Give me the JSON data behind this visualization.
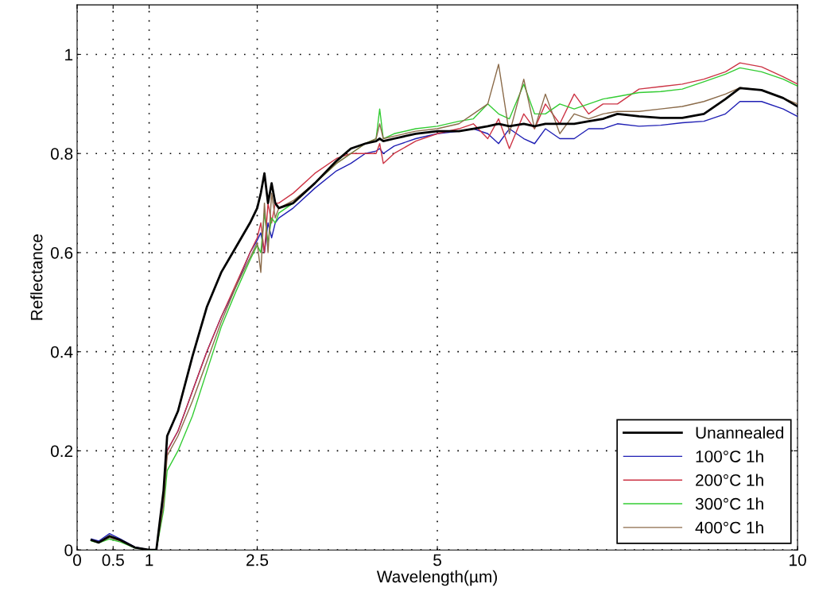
{
  "chart_data": {
    "type": "line",
    "xlabel": "Wavelength(µm)",
    "ylabel": "Reflectance",
    "x": [
      0.2,
      0.3,
      0.45,
      0.6,
      0.8,
      1.0,
      1.1,
      1.2,
      1.25,
      1.4,
      1.6,
      1.8,
      2.0,
      2.2,
      2.4,
      2.5,
      2.55,
      2.6,
      2.65,
      2.7,
      2.75,
      2.8,
      3.0,
      3.3,
      3.6,
      3.8,
      4.0,
      4.15,
      4.2,
      4.25,
      4.4,
      4.7,
      5.0,
      5.3,
      5.5,
      5.7,
      5.85,
      6.0,
      6.2,
      6.35,
      6.5,
      6.7,
      6.9,
      7.1,
      7.3,
      7.5,
      7.8,
      8.1,
      8.4,
      8.7,
      9.0,
      9.2,
      9.5,
      9.8,
      10.0
    ],
    "series": [
      {
        "name": "Unannealed",
        "color": "#000000",
        "values": [
          0.02,
          0.015,
          0.028,
          0.02,
          0.005,
          0.0,
          0.0,
          0.12,
          0.23,
          0.28,
          0.39,
          0.49,
          0.56,
          0.61,
          0.66,
          0.69,
          0.72,
          0.76,
          0.7,
          0.74,
          0.7,
          0.69,
          0.7,
          0.74,
          0.785,
          0.81,
          0.82,
          0.825,
          0.83,
          0.825,
          0.83,
          0.84,
          0.845,
          0.845,
          0.85,
          0.855,
          0.86,
          0.855,
          0.86,
          0.855,
          0.86,
          0.86,
          0.86,
          0.865,
          0.87,
          0.88,
          0.875,
          0.872,
          0.872,
          0.88,
          0.91,
          0.932,
          0.928,
          0.912,
          0.895
        ]
      },
      {
        "name": "100°C 1h",
        "color": "#1f1fb4",
        "values": [
          0.022,
          0.018,
          0.033,
          0.022,
          0.006,
          0.0,
          0.0,
          0.1,
          0.2,
          0.24,
          0.32,
          0.4,
          0.47,
          0.53,
          0.6,
          0.625,
          0.64,
          0.6,
          0.66,
          0.63,
          0.66,
          0.67,
          0.69,
          0.73,
          0.765,
          0.78,
          0.8,
          0.805,
          0.81,
          0.8,
          0.815,
          0.83,
          0.84,
          0.845,
          0.85,
          0.84,
          0.82,
          0.85,
          0.83,
          0.82,
          0.85,
          0.83,
          0.83,
          0.85,
          0.85,
          0.86,
          0.855,
          0.857,
          0.862,
          0.865,
          0.88,
          0.905,
          0.905,
          0.89,
          0.875
        ]
      },
      {
        "name": "200°C 1h",
        "color": "#cc3344",
        "values": [
          null,
          null,
          null,
          null,
          null,
          null,
          null,
          0.1,
          0.2,
          0.24,
          0.32,
          0.4,
          0.47,
          0.535,
          0.6,
          0.63,
          0.66,
          0.6,
          0.7,
          0.66,
          0.7,
          0.7,
          0.72,
          0.76,
          0.79,
          0.8,
          0.8,
          0.8,
          0.82,
          0.78,
          0.8,
          0.825,
          0.84,
          0.85,
          0.86,
          0.83,
          0.87,
          0.81,
          0.88,
          0.85,
          0.9,
          0.86,
          0.92,
          0.88,
          0.9,
          0.9,
          0.93,
          0.935,
          0.94,
          0.95,
          0.965,
          0.983,
          0.975,
          0.955,
          0.94
        ]
      },
      {
        "name": "300°C 1h",
        "color": "#33cc33",
        "values": [
          0.018,
          0.014,
          0.022,
          0.016,
          0.004,
          0.0,
          0.0,
          0.08,
          0.16,
          0.2,
          0.27,
          0.36,
          0.45,
          0.52,
          0.585,
          0.615,
          0.6,
          0.68,
          0.62,
          0.67,
          0.66,
          0.68,
          0.7,
          0.74,
          0.78,
          0.8,
          0.82,
          0.83,
          0.89,
          0.83,
          0.84,
          0.85,
          0.855,
          0.865,
          0.87,
          0.9,
          0.88,
          0.87,
          0.94,
          0.88,
          0.88,
          0.9,
          0.89,
          0.9,
          0.91,
          0.915,
          0.923,
          0.925,
          0.93,
          0.945,
          0.96,
          0.973,
          0.965,
          0.95,
          0.936
        ]
      },
      {
        "name": "400°C 1h",
        "color": "#8b6b4a",
        "values": [
          0.019,
          0.015,
          0.025,
          0.018,
          0.005,
          0.0,
          0.0,
          0.09,
          0.19,
          0.23,
          0.3,
          0.38,
          0.46,
          0.53,
          0.59,
          0.62,
          0.56,
          0.7,
          0.6,
          0.72,
          0.67,
          0.69,
          0.705,
          0.74,
          0.78,
          0.8,
          0.82,
          0.83,
          0.86,
          0.83,
          0.835,
          0.845,
          0.85,
          0.86,
          0.88,
          0.9,
          0.98,
          0.84,
          0.95,
          0.85,
          0.92,
          0.84,
          0.88,
          0.87,
          0.88,
          0.885,
          0.885,
          0.89,
          0.895,
          0.905,
          0.92,
          0.933,
          0.928,
          0.912,
          0.9
        ]
      }
    ],
    "xlim": [
      0,
      10
    ],
    "ylim": [
      0,
      1.1
    ],
    "xticks": [
      0,
      0.5,
      1,
      2.5,
      5,
      10
    ],
    "yticks": [
      0,
      0.2,
      0.4,
      0.6,
      0.8,
      1
    ],
    "grid": true,
    "legend": "bottom right",
    "line_style": "solid",
    "marker": "none"
  }
}
